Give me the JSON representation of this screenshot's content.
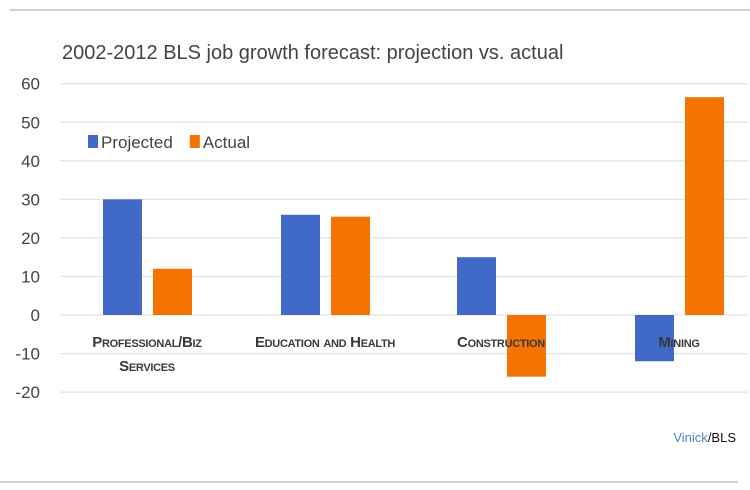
{
  "chart_data": {
    "type": "bar",
    "title": "2002-2012 BLS job growth forecast: projection vs. actual",
    "xlabel": "",
    "ylabel": "",
    "ylim": [
      -20,
      60
    ],
    "yticks": [
      60,
      50,
      40,
      30,
      20,
      10,
      0,
      -10,
      -20
    ],
    "grid": true,
    "legend_position": "top-left",
    "categories": [
      [
        "Professional/Biz",
        "Services"
      ],
      [
        "Education and Health"
      ],
      [
        "Construction"
      ],
      [
        "Mining"
      ]
    ],
    "series": [
      {
        "name": "Projected",
        "color": "#4169c7",
        "values": [
          30,
          26,
          15,
          -12
        ]
      },
      {
        "name": "Actual",
        "color": "#f57300",
        "values": [
          12,
          25.5,
          -16,
          56.5
        ]
      }
    ]
  },
  "credit": {
    "author": "Vinick",
    "source": "/BLS"
  }
}
